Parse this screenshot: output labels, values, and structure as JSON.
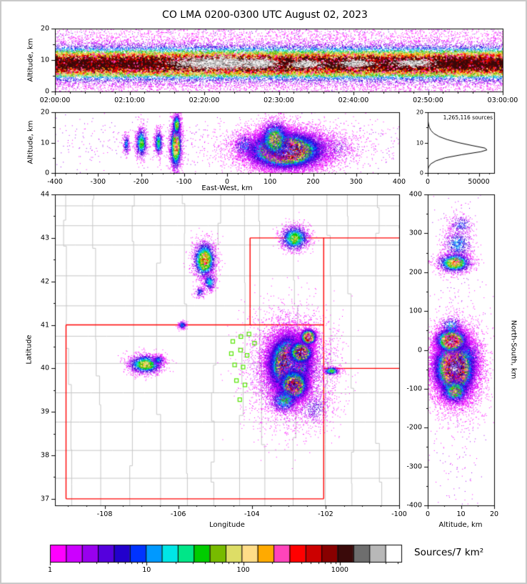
{
  "title": "CO LMA 0200-0300 UTC August 02, 2023",
  "colors": {
    "palette": [
      "#ff00ff",
      "#cc00ff",
      "#9900ee",
      "#5500dd",
      "#2200cc",
      "#0033ff",
      "#0099ff",
      "#00e6e6",
      "#00e688",
      "#00cc00",
      "#77bb00",
      "#dddd66",
      "#ffdd88",
      "#ffaa00",
      "#ff44bb",
      "#ff0000",
      "#cc0000",
      "#880000",
      "#3a0a0a",
      "#6e6e6e",
      "#b8b8b8",
      "#ffffff"
    ],
    "county_line": "#c6c6c6",
    "state_line": "#ff0000",
    "station": "#55e600",
    "curve": "#000000",
    "axis": "#000000",
    "background": "#ffffff"
  },
  "colorbar": {
    "label": "Sources/7 km²",
    "scale": "log",
    "tick_labels": [
      "1",
      "10",
      "100",
      "1000"
    ],
    "tick_positions": [
      0,
      0.275,
      0.55,
      0.825
    ]
  },
  "chart_data": [
    {
      "id": "time_height",
      "type": "heatmap",
      "ylabel": "Altitude, km",
      "y_range": [
        0,
        20
      ],
      "y_ticks": [
        0,
        10,
        20
      ],
      "x_tick_labels": [
        "02:00:00",
        "02:10:00",
        "02:20:00",
        "02:30:00",
        "02:40:00",
        "02:50:00",
        "03:00:00"
      ],
      "band": {
        "center_km": 9,
        "sigma_km": 3.0,
        "n": 42000,
        "uniform_noise_n": 6500
      },
      "white_patches": [
        {
          "x_frac": 0.36,
          "alt_km": 9.2,
          "sx_frac": 0.045,
          "s_alt": 0.9,
          "n": 1600
        },
        {
          "x_frac": 0.455,
          "alt_km": 9.0,
          "sx_frac": 0.02,
          "s_alt": 0.7,
          "n": 500
        },
        {
          "x_frac": 0.56,
          "alt_km": 8.8,
          "sx_frac": 0.018,
          "s_alt": 0.6,
          "n": 350
        },
        {
          "x_frac": 0.67,
          "alt_km": 9.0,
          "sx_frac": 0.02,
          "s_alt": 0.6,
          "n": 350
        },
        {
          "x_frac": 0.8,
          "alt_km": 9.1,
          "sx_frac": 0.022,
          "s_alt": 0.6,
          "n": 400
        }
      ]
    },
    {
      "id": "ew_height",
      "type": "scatter_density",
      "xlabel": "East-West, km",
      "ylabel": "Altitude, km",
      "x_range": [
        -400,
        400
      ],
      "y_range": [
        0,
        20
      ],
      "x_ticks": [
        -400,
        -300,
        -200,
        -100,
        0,
        100,
        200,
        300,
        400
      ],
      "y_ticks": [
        0,
        10,
        20
      ],
      "noise_n": 600,
      "blobs": [
        {
          "x": 135,
          "y": 7.5,
          "sx": 42,
          "sy": 2.9,
          "peak": 1.0,
          "n": 26000
        },
        {
          "x": 110,
          "y": 11,
          "sx": 18,
          "sy": 3.2,
          "peak": 0.55,
          "n": 3000
        },
        {
          "x": 150,
          "y": 8,
          "sx": 80,
          "sy": 4.5,
          "peak": 0.22,
          "n": 2600
        },
        {
          "x": -120,
          "y": 9,
          "sx": 7,
          "sy": 4.0,
          "peak": 0.65,
          "n": 2400
        },
        {
          "x": -118,
          "y": 16,
          "sx": 5,
          "sy": 1.8,
          "peak": 0.5,
          "n": 700
        },
        {
          "x": -160,
          "y": 10,
          "sx": 5,
          "sy": 2.2,
          "peak": 0.4,
          "n": 600
        },
        {
          "x": -200,
          "y": 10,
          "sx": 7,
          "sy": 2.6,
          "peak": 0.45,
          "n": 900
        },
        {
          "x": -235,
          "y": 9.5,
          "sx": 4,
          "sy": 1.8,
          "peak": 0.3,
          "n": 250
        },
        {
          "x": 40,
          "y": 9,
          "sx": 15,
          "sy": 2.5,
          "peak": 0.28,
          "n": 420
        },
        {
          "x": 255,
          "y": 8,
          "sx": 22,
          "sy": 2.5,
          "peak": 0.16,
          "n": 220
        }
      ]
    },
    {
      "id": "altitude_histogram",
      "type": "line",
      "annotation": "1,265,116 sources",
      "x_range": [
        0,
        65000
      ],
      "x_ticks": [
        0,
        50000
      ],
      "y_range": [
        0,
        20
      ],
      "y_ticks": [
        0,
        10,
        20
      ],
      "points": [
        [
          0,
          0
        ],
        [
          150,
          1
        ],
        [
          900,
          2
        ],
        [
          3000,
          3
        ],
        [
          8000,
          4
        ],
        [
          17000,
          5
        ],
        [
          33000,
          6
        ],
        [
          52000,
          7
        ],
        [
          58000,
          7.6
        ],
        [
          56000,
          8.2
        ],
        [
          44000,
          9
        ],
        [
          30000,
          10
        ],
        [
          19000,
          11
        ],
        [
          11000,
          12
        ],
        [
          6000,
          13
        ],
        [
          3200,
          14
        ],
        [
          1600,
          15
        ],
        [
          800,
          16
        ],
        [
          350,
          17
        ],
        [
          120,
          18
        ],
        [
          30,
          19
        ],
        [
          0,
          20
        ]
      ]
    },
    {
      "id": "plan_view_map",
      "type": "scatter_density_map",
      "xlabel": "Longitude",
      "ylabel": "Latitude",
      "x_range": [
        -109.35,
        -100.0
      ],
      "y_range": [
        36.85,
        44.0
      ],
      "x_ticks": [
        -108,
        -106,
        -104,
        -102,
        -100
      ],
      "y_ticks": [
        37,
        38,
        39,
        40,
        41,
        42,
        43,
        44
      ],
      "county_seed": 7,
      "state_lines": [
        [
          [
            -109.05,
            37.0
          ],
          [
            -102.05,
            37.0
          ]
        ],
        [
          [
            -109.05,
            37.0
          ],
          [
            -109.05,
            41.0
          ]
        ],
        [
          [
            -109.05,
            41.0
          ],
          [
            -102.05,
            41.0
          ]
        ],
        [
          [
            -102.05,
            37.0
          ],
          [
            -102.05,
            43.0
          ]
        ],
        [
          [
            -104.05,
            41.0
          ],
          [
            -104.05,
            43.0
          ]
        ],
        [
          [
            -104.05,
            43.0
          ],
          [
            -100.0,
            43.0
          ]
        ],
        [
          [
            -102.05,
            40.0
          ],
          [
            -100.0,
            40.0
          ]
        ]
      ],
      "stations": [
        [
          -104.52,
          40.62
        ],
        [
          -104.3,
          40.73
        ],
        [
          -104.08,
          40.79
        ],
        [
          -103.93,
          40.58
        ],
        [
          -104.56,
          40.34
        ],
        [
          -104.31,
          40.42
        ],
        [
          -104.13,
          40.3
        ],
        [
          -104.47,
          40.08
        ],
        [
          -104.24,
          40.03
        ],
        [
          -104.42,
          39.72
        ],
        [
          -104.19,
          39.62
        ],
        [
          -104.33,
          39.28
        ]
      ],
      "blobs": [
        {
          "x": -103.0,
          "y": 40.1,
          "sx": 0.27,
          "sy": 0.32,
          "peak": 1.0,
          "n": 30000
        },
        {
          "x": -102.68,
          "y": 40.38,
          "sx": 0.16,
          "sy": 0.13,
          "peak": 0.88,
          "n": 5000
        },
        {
          "x": -102.88,
          "y": 39.62,
          "sx": 0.2,
          "sy": 0.18,
          "peak": 0.85,
          "n": 6500
        },
        {
          "x": -103.12,
          "y": 39.28,
          "sx": 0.22,
          "sy": 0.16,
          "peak": 0.4,
          "n": 1200
        },
        {
          "x": -102.48,
          "y": 40.73,
          "sx": 0.11,
          "sy": 0.09,
          "peak": 0.9,
          "n": 2400
        },
        {
          "x": -102.95,
          "y": 40.0,
          "sx": 0.6,
          "sy": 0.65,
          "peak": 0.24,
          "n": 4200
        },
        {
          "x": -102.3,
          "y": 39.1,
          "sx": 0.28,
          "sy": 0.2,
          "peak": 0.2,
          "n": 420
        },
        {
          "x": -101.85,
          "y": 39.95,
          "sx": 0.11,
          "sy": 0.05,
          "peak": 0.45,
          "n": 380
        },
        {
          "x": -102.85,
          "y": 43.0,
          "sx": 0.2,
          "sy": 0.15,
          "peak": 0.5,
          "n": 1700
        },
        {
          "x": -105.3,
          "y": 42.5,
          "sx": 0.15,
          "sy": 0.21,
          "peak": 0.65,
          "n": 2400
        },
        {
          "x": -105.16,
          "y": 42.0,
          "sx": 0.09,
          "sy": 0.11,
          "peak": 0.35,
          "n": 420
        },
        {
          "x": -105.42,
          "y": 41.76,
          "sx": 0.07,
          "sy": 0.07,
          "peak": 0.25,
          "n": 160
        },
        {
          "x": -106.9,
          "y": 40.1,
          "sx": 0.24,
          "sy": 0.11,
          "peak": 0.55,
          "n": 2000
        },
        {
          "x": -106.55,
          "y": 40.2,
          "sx": 0.09,
          "sy": 0.06,
          "peak": 0.3,
          "n": 260
        },
        {
          "x": -105.9,
          "y": 41.0,
          "sx": 0.06,
          "sy": 0.05,
          "peak": 0.3,
          "n": 200
        }
      ]
    },
    {
      "id": "ns_height",
      "type": "scatter_density",
      "xlabel": "Altitude, km",
      "ylabel": "North-South, km",
      "x_range": [
        0,
        20
      ],
      "y_range": [
        -400,
        400
      ],
      "x_ticks": [
        0,
        10,
        20
      ],
      "y_ticks": [
        400,
        300,
        200,
        100,
        0,
        -100,
        -200,
        -300,
        -400
      ],
      "noise_n": 350,
      "blobs": [
        {
          "x": 8,
          "y": -45,
          "sx": 3.0,
          "sy": 36,
          "peak": 1.0,
          "n": 26000
        },
        {
          "x": 7,
          "y": 25,
          "sx": 2.4,
          "sy": 16,
          "peak": 0.88,
          "n": 4500
        },
        {
          "x": 8,
          "y": -105,
          "sx": 2.4,
          "sy": 18,
          "peak": 0.5,
          "n": 1400
        },
        {
          "x": 9,
          "y": -45,
          "sx": 4.5,
          "sy": 65,
          "peak": 0.2,
          "n": 2200
        },
        {
          "x": 8,
          "y": 225,
          "sx": 2.6,
          "sy": 13,
          "peak": 0.6,
          "n": 2000
        },
        {
          "x": 9,
          "y": 272,
          "sx": 2.4,
          "sy": 22,
          "peak": 0.3,
          "n": 700
        },
        {
          "x": 10,
          "y": 322,
          "sx": 2.0,
          "sy": 14,
          "peak": 0.25,
          "n": 260
        },
        {
          "x": 7,
          "y": 62,
          "sx": 2.0,
          "sy": 13,
          "peak": 0.35,
          "n": 380
        },
        {
          "x": 12,
          "y": -12,
          "sx": 2.6,
          "sy": 26,
          "peak": 0.3,
          "n": 420
        }
      ]
    }
  ]
}
